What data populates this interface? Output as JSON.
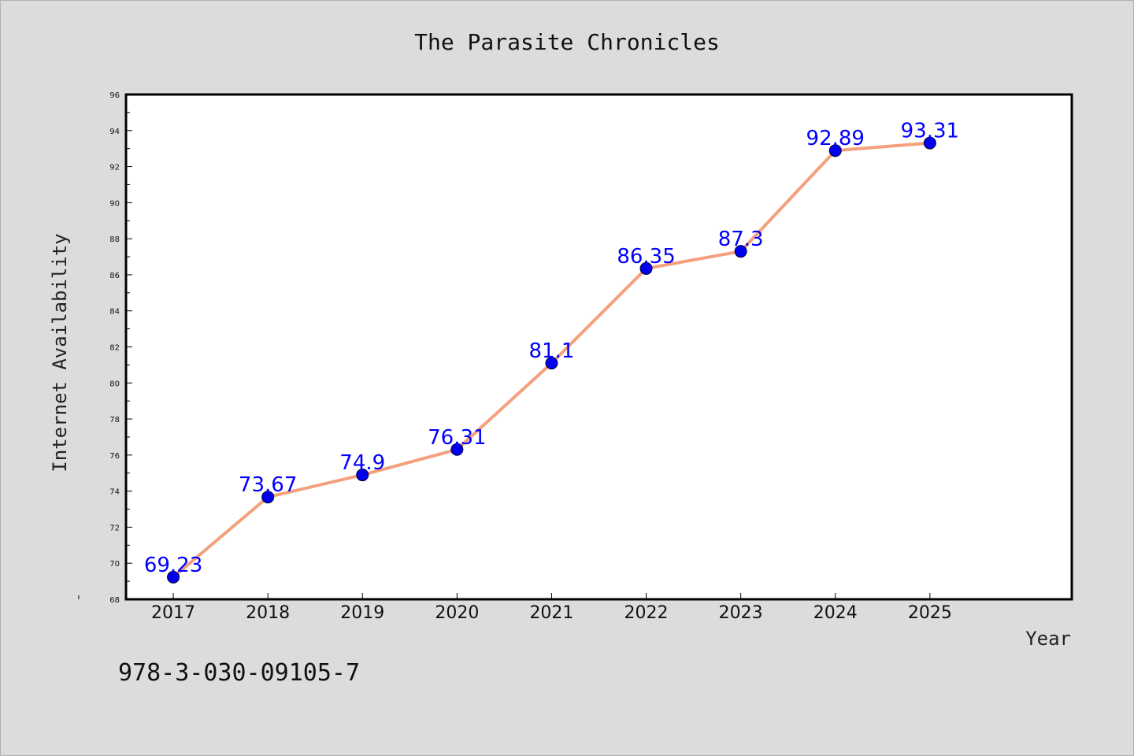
{
  "colors": {
    "background": "#dcdcdc",
    "plot_background": "#ffffff",
    "line": "#f4a07c",
    "marker": "#0000ee",
    "data_label": "#0000ff"
  },
  "chart_data": {
    "type": "line",
    "title": "The Parasite Chronicles",
    "xlabel": "Year",
    "ylabel": "Internet Availability",
    "categories": [
      "2017",
      "2018",
      "2019",
      "2020",
      "2021",
      "2022",
      "2023",
      "2024",
      "2025"
    ],
    "series": [
      {
        "values": [
          69.23,
          73.67,
          74.9,
          76.31,
          81.1,
          86.35,
          87.3,
          92.89,
          93.31
        ]
      }
    ],
    "data_labels": [
      "69.23",
      "73.67",
      "74.9",
      "76.31",
      "81.1",
      "86.35",
      "87.3",
      "92.89",
      "93.31"
    ],
    "ylim": [
      68,
      96
    ],
    "yticks": [
      68,
      70,
      72,
      74,
      76,
      78,
      80,
      82,
      84,
      86,
      88,
      90,
      92,
      94,
      96
    ],
    "x_domain": [
      2016.5,
      2026.5
    ],
    "grid": false,
    "legend": "none"
  },
  "footer": {
    "isbn": "978-3-030-09105-7"
  }
}
